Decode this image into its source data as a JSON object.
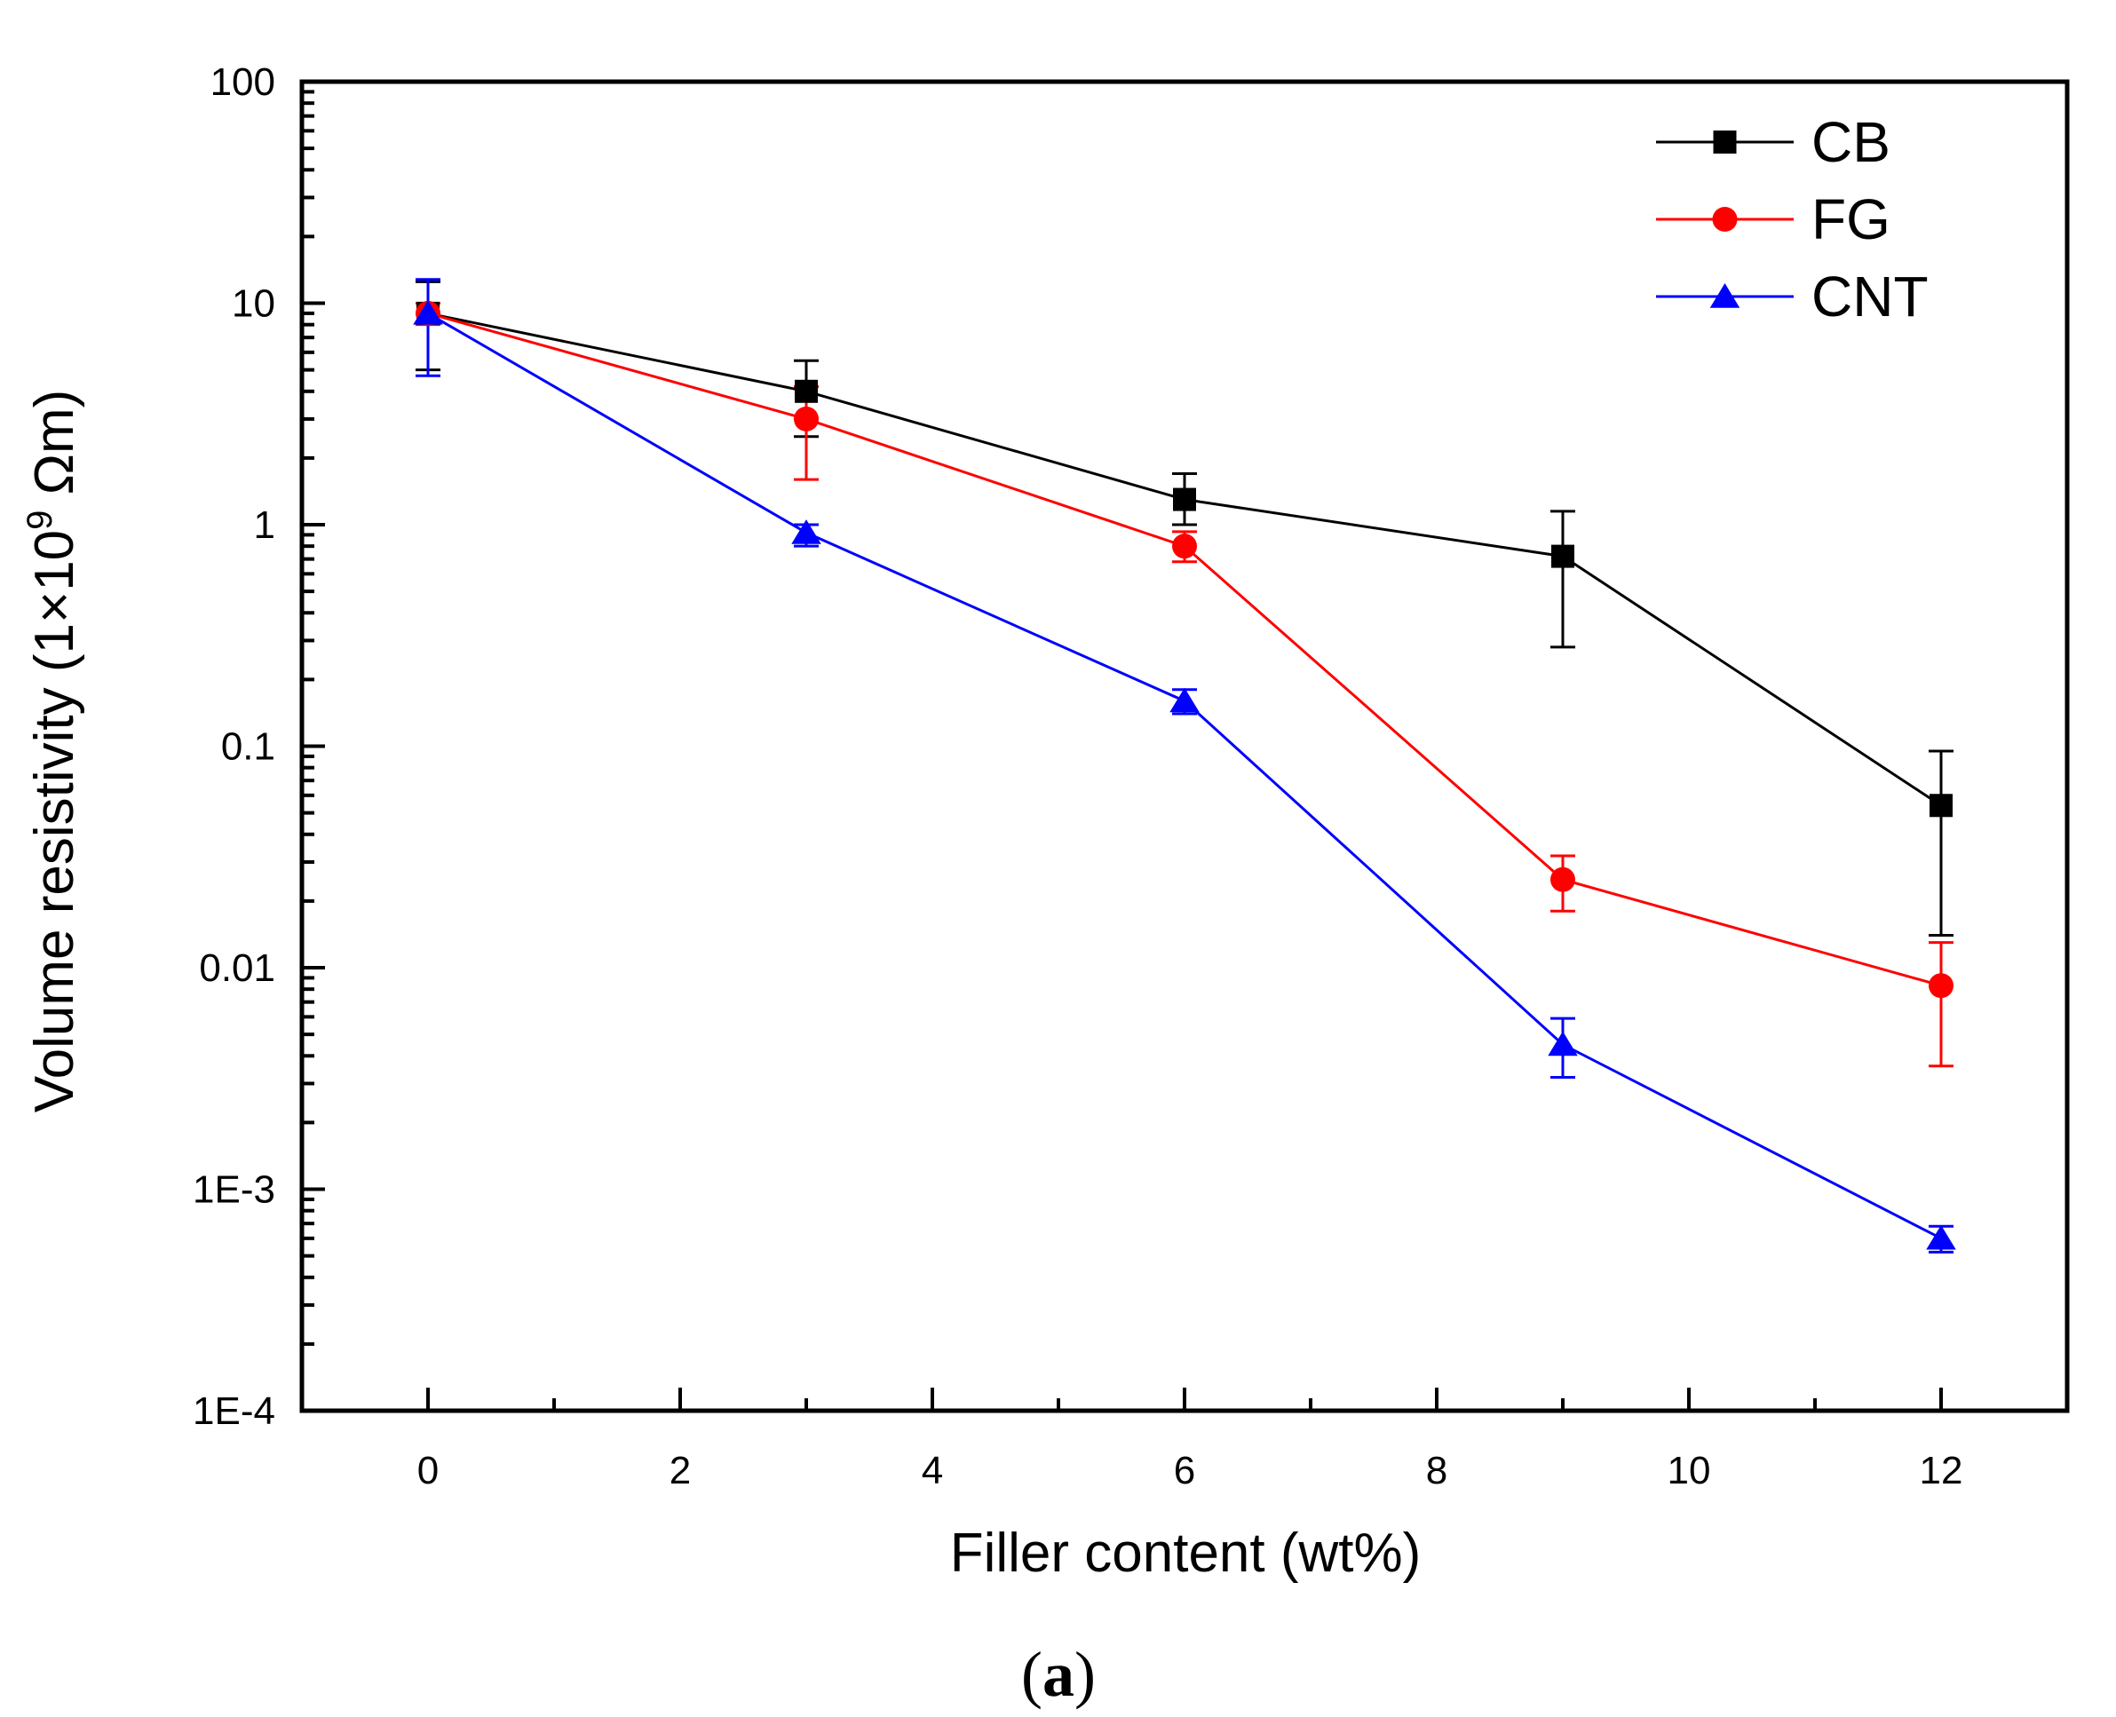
{
  "chart_data": {
    "type": "line",
    "title": "",
    "xlabel": "Filler content (wt%)",
    "ylabel": {
      "prefix": "Volume resistivity (1×10",
      "exponent": "9",
      "suffix": " Ωm)"
    },
    "xlim": [
      -1,
      13
    ],
    "ylim": [
      0.0001,
      100
    ],
    "yscale": "log",
    "x_ticks": [
      0,
      2,
      4,
      6,
      8,
      10,
      12
    ],
    "x_tick_labels": [
      "0",
      "2",
      "4",
      "6",
      "8",
      "10",
      "12"
    ],
    "y_ticks": [
      0.0001,
      0.001,
      0.01,
      0.1,
      1,
      10,
      100
    ],
    "y_tick_labels": [
      "1E-4",
      "1E-3",
      "0.01",
      "0.1",
      "1",
      "10",
      "100"
    ],
    "legend_position": "top-right",
    "grid": false,
    "panel_label": "a",
    "series": [
      {
        "name": "CB",
        "color": "#000000",
        "marker": "square",
        "x": [
          0,
          3,
          6,
          9,
          12
        ],
        "y": [
          9,
          4.0,
          1.3,
          0.72,
          0.054
        ],
        "err_low": [
          5,
          2.5,
          1.0,
          0.28,
          0.014
        ],
        "err_high": [
          12.5,
          5.5,
          1.7,
          1.15,
          0.095
        ]
      },
      {
        "name": "FG",
        "color": "#ff0000",
        "marker": "circle",
        "x": [
          0,
          3,
          6,
          9,
          12
        ],
        "y": [
          9,
          3.0,
          0.8,
          0.025,
          0.0083
        ],
        "err_low": [
          8,
          1.6,
          0.68,
          0.018,
          0.0036
        ],
        "err_high": [
          10,
          4.2,
          0.93,
          0.032,
          0.013
        ]
      },
      {
        "name": "CNT",
        "color": "#0000ff",
        "marker": "triangle",
        "x": [
          0,
          3,
          6,
          9,
          12
        ],
        "y": [
          9,
          0.92,
          0.16,
          0.0045,
          0.0006
        ],
        "err_low": [
          4.7,
          0.8,
          0.14,
          0.0032,
          0.00052
        ],
        "err_high": [
          12.8,
          1.0,
          0.18,
          0.0059,
          0.00068
        ]
      }
    ]
  }
}
